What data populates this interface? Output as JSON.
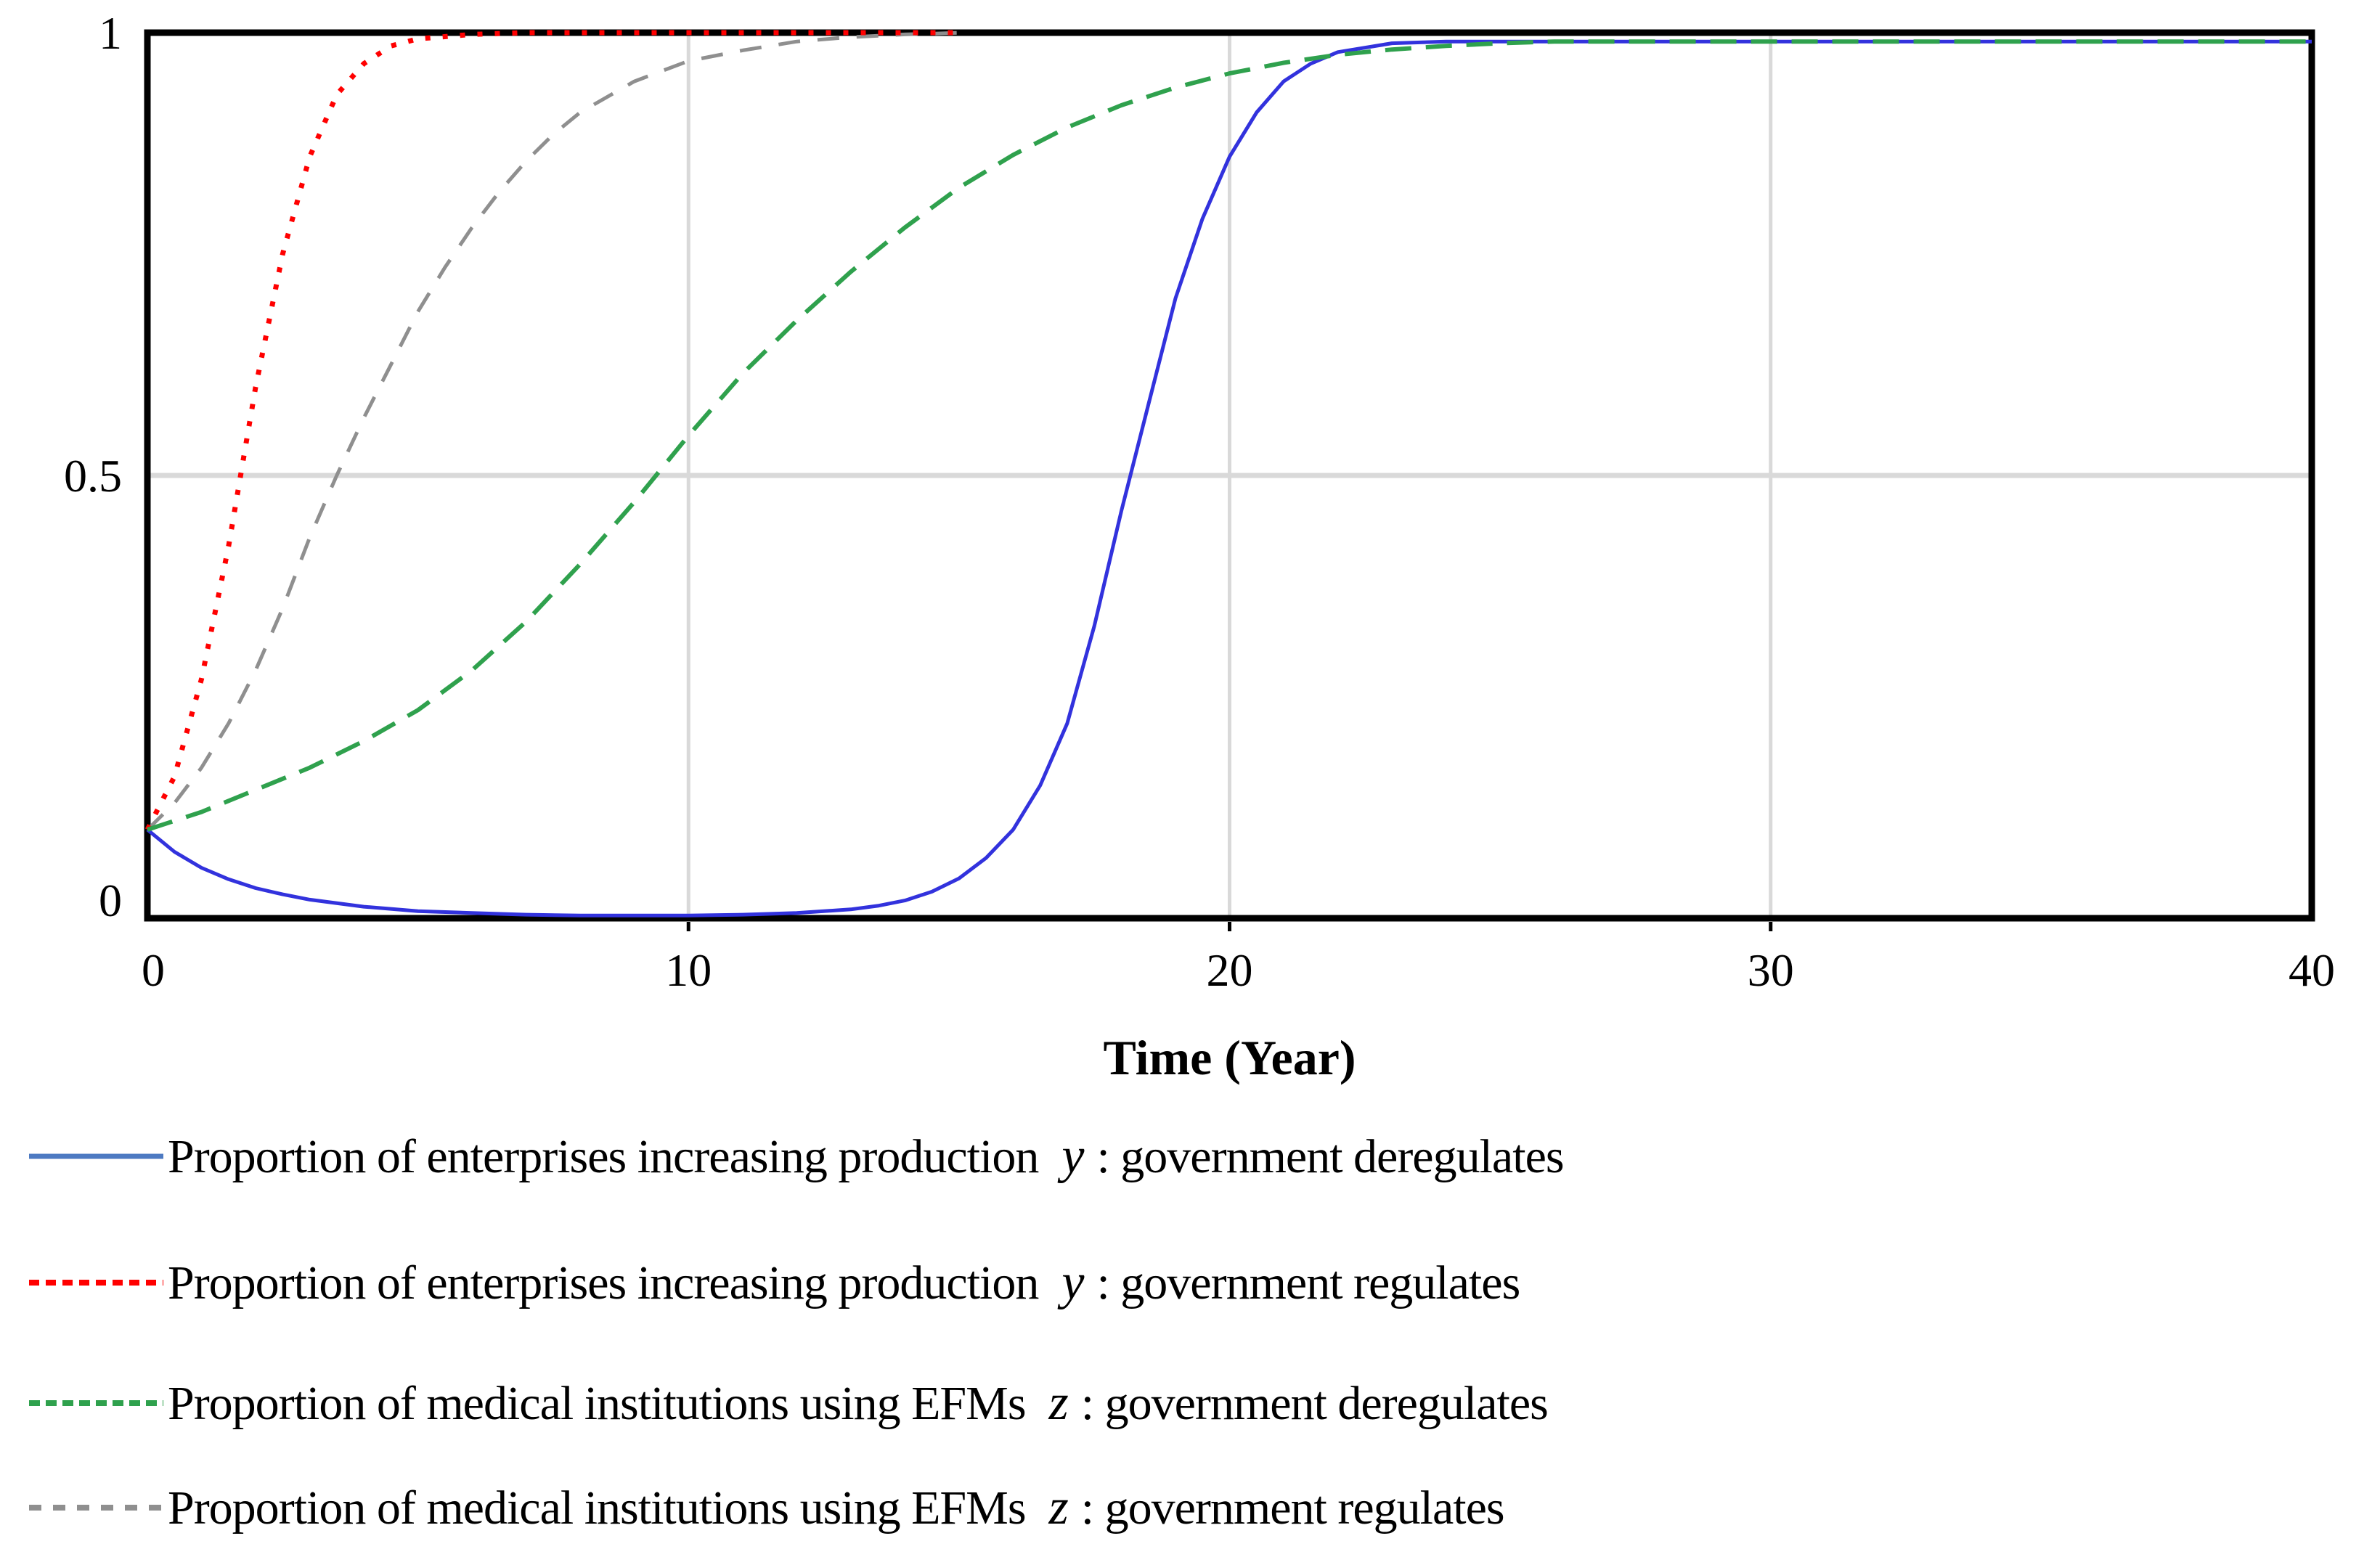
{
  "figure": {
    "background": "#ffffff"
  },
  "axes": {
    "frame_color": "#000000",
    "grid_color": "#d9d9d9",
    "tick_color": "#000000",
    "tick_font_color": "#000000"
  },
  "chart_data": {
    "type": "line",
    "title": "",
    "xlabel": "Time (Year)",
    "ylabel": "",
    "xlim": [
      0,
      40
    ],
    "ylim": [
      0,
      1
    ],
    "xticks": [
      0,
      10,
      20,
      30,
      40
    ],
    "xtick_labels": [
      "0",
      "10",
      "20",
      "30",
      "40"
    ],
    "yticks": [
      0,
      0.5,
      1
    ],
    "ytick_labels": [
      "0",
      "0.5",
      "1"
    ],
    "grid": true,
    "legend_position": "below",
    "series": [
      {
        "name": "Proportion of enterprises increasing production y : government deregulates",
        "color": "#3232dd",
        "plot_dash": "",
        "legend_dash": "",
        "stroke_width": 5,
        "x": [
          0,
          0.5,
          1,
          1.5,
          2,
          2.5,
          3,
          4,
          5,
          6,
          7,
          8,
          9,
          10,
          11,
          12,
          13,
          13.5,
          14,
          14.5,
          15,
          15.5,
          16,
          16.5,
          17,
          17.5,
          18,
          18.5,
          19,
          19.5,
          20,
          20.5,
          21,
          21.5,
          22,
          23,
          24,
          26,
          30,
          35,
          40
        ],
        "y": [
          0.1,
          0.075,
          0.057,
          0.044,
          0.034,
          0.027,
          0.021,
          0.013,
          0.008,
          0.006,
          0.004,
          0.003,
          0.003,
          0.003,
          0.004,
          0.006,
          0.01,
          0.014,
          0.02,
          0.03,
          0.045,
          0.068,
          0.1,
          0.15,
          0.22,
          0.33,
          0.46,
          0.58,
          0.7,
          0.79,
          0.86,
          0.91,
          0.945,
          0.965,
          0.978,
          0.988,
          0.99,
          0.99,
          0.99,
          0.99,
          0.99
        ]
      },
      {
        "name": "Proportion of enterprises increasing production y : government regulates",
        "color": "#ff0000",
        "plot_dash": "7 17",
        "legend_dash": "14 9",
        "stroke_width": 7,
        "x": [
          0,
          0.5,
          1,
          1.5,
          2,
          2.5,
          3,
          3.5,
          4,
          4.5,
          5,
          6,
          7,
          8,
          9,
          10,
          11,
          12,
          13,
          14,
          15.1
        ],
        "y": [
          0.1,
          0.16,
          0.27,
          0.42,
          0.6,
          0.75,
          0.86,
          0.93,
          0.965,
          0.985,
          0.993,
          0.998,
          1.0,
          1.0,
          1.0,
          1.0,
          1.0,
          1.0,
          1.0,
          1.0,
          1.0
        ]
      },
      {
        "name": "Proportion of medical institutions using EFMs z : government deregulates",
        "color": "#2fa14d",
        "plot_dash": "36 20",
        "legend_dash": "15 8",
        "stroke_width": 6,
        "x": [
          0,
          1,
          2,
          3,
          4,
          5,
          6,
          7,
          8,
          9,
          10,
          11,
          12,
          13,
          14,
          15,
          16,
          17,
          18,
          19,
          20,
          21,
          22,
          23,
          24,
          25,
          26,
          28,
          30,
          35,
          40
        ],
        "y": [
          0.1,
          0.12,
          0.145,
          0.17,
          0.2,
          0.235,
          0.28,
          0.335,
          0.4,
          0.47,
          0.545,
          0.615,
          0.675,
          0.73,
          0.78,
          0.825,
          0.862,
          0.893,
          0.918,
          0.938,
          0.954,
          0.966,
          0.975,
          0.981,
          0.985,
          0.988,
          0.99,
          0.99,
          0.99,
          0.99,
          0.99
        ]
      },
      {
        "name": "Proportion of medical institutions using EFMs z : government regulates",
        "color": "#8f8f8f",
        "plot_dash": "30 24",
        "legend_dash": "17 16",
        "stroke_width": 5,
        "x": [
          0,
          0.5,
          1,
          1.5,
          2,
          2.5,
          3,
          3.5,
          4,
          4.5,
          5,
          5.5,
          6,
          6.5,
          7,
          7.5,
          8,
          9,
          10,
          11,
          12,
          13,
          14,
          15.1
        ],
        "y": [
          0.1,
          0.13,
          0.17,
          0.22,
          0.28,
          0.35,
          0.43,
          0.5,
          0.565,
          0.625,
          0.685,
          0.735,
          0.78,
          0.82,
          0.855,
          0.885,
          0.91,
          0.945,
          0.968,
          0.98,
          0.99,
          0.995,
          0.998,
          1.0
        ]
      }
    ]
  },
  "legend": {
    "items": [
      {
        "prefix": "Proportion of enterprises increasing production",
        "var": "y",
        "suffix": ": government deregulates"
      },
      {
        "prefix": "Proportion of enterprises increasing production",
        "var": "y",
        "suffix": ": government regulates"
      },
      {
        "prefix": "Proportion of medical institutions using EFMs",
        "var": "z",
        "suffix": ": government deregulates"
      },
      {
        "prefix": "Proportion of medical institutions using EFMs",
        "var": "z",
        "suffix": ": government regulates"
      }
    ]
  }
}
